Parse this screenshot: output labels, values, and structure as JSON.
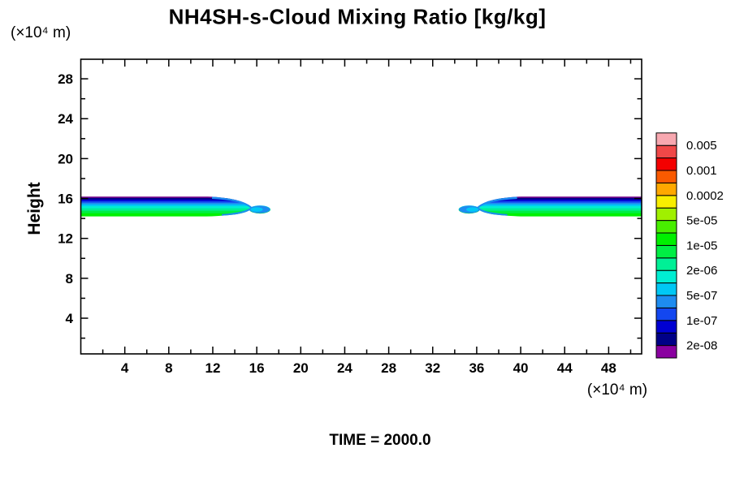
{
  "title": "NH4SH-s-Cloud Mixing Ratio [kg/kg]",
  "y_axis_unit": "(×10⁴ m)",
  "x_axis_unit": "(×10⁴ m)",
  "y_axis_label": "Height",
  "time_label": "TIME = 2000.0",
  "chart_data": {
    "type": "filled_contour",
    "title": "NH4SH-s-Cloud Mixing Ratio [kg/kg]",
    "xlabel": "(×10⁴ m)",
    "ylabel": "Height (×10⁴ m)",
    "x_range": [
      0,
      51
    ],
    "y_range": [
      0,
      30
    ],
    "grid": false,
    "x_major_ticks": [
      4,
      8,
      12,
      16,
      20,
      24,
      28,
      32,
      36,
      40,
      44,
      48
    ],
    "x_minor_ticks": [
      2,
      6,
      10,
      14,
      18,
      22,
      26,
      30,
      34,
      38,
      42,
      46,
      50
    ],
    "y_major_ticks": [
      4,
      8,
      12,
      16,
      20,
      24,
      28
    ],
    "y_minor_ticks": [
      2,
      6,
      10,
      14,
      18,
      22,
      26
    ],
    "time": "2000.0",
    "colorbar": {
      "position": "right",
      "levels_bottom_to_top": [
        2e-08,
        5e-08,
        1e-07,
        2e-07,
        5e-07,
        1e-06,
        2e-06,
        5e-06,
        1e-05,
        2e-05,
        5e-05,
        0.0001,
        0.0002,
        0.0005,
        0.001,
        0.002,
        0.005
      ],
      "colors_bottom_to_top": [
        "#8A00A0",
        "#000087",
        "#0000D2",
        "#1347F0",
        "#1E8CF0",
        "#00C8F5",
        "#00EED2",
        "#00F096",
        "#00EE44",
        "#00F000",
        "#48EE00",
        "#A0F000",
        "#F8EE00",
        "#FFA800",
        "#FA5A00",
        "#F40000",
        "#F04848",
        "#F8A8B0"
      ],
      "labels_bottom_to_top": [
        "2e-08",
        "1e-07",
        "5e-07",
        "2e-06",
        "1e-05",
        "5e-05",
        "0.0002",
        "0.001",
        "0.005"
      ]
    },
    "cloud_layer": {
      "height_top": 16.2,
      "height_base": 14.2,
      "bands": [
        {
          "x_start": 0,
          "x_end": 17.1
        },
        {
          "x_start": 34.5,
          "x_end": 51
        }
      ],
      "layers_top_to_bottom": [
        {
          "color": "#7A0A8C",
          "frac": 0.07
        },
        {
          "color": "#000087",
          "frac": 0.08
        },
        {
          "color": "#0000D2",
          "frac": 0.08
        },
        {
          "color": "#1347F0",
          "frac": 0.08
        },
        {
          "color": "#1E8CF0",
          "frac": 0.08
        },
        {
          "color": "#00C8F5",
          "frac": 0.09
        },
        {
          "color": "#00EED2",
          "frac": 0.11
        },
        {
          "color": "#00F096",
          "frac": 0.12
        },
        {
          "color": "#00EE44",
          "frac": 0.13
        },
        {
          "color": "#00F000",
          "frac": 0.16
        }
      ]
    }
  }
}
